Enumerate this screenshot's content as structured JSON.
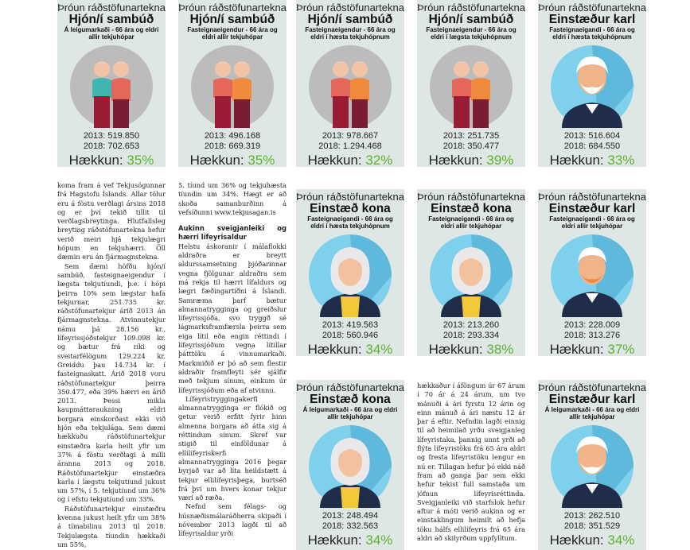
{
  "cards": [
    {
      "header": "Þróun ráðstöfunartekna",
      "title": "Hjón/í sambúð",
      "subtitle": "Á leigumarkaði - 66 ára og eldri allir tekjuhópar",
      "year1": "2013: 519.850",
      "year2": "2018: 702.653",
      "increase_label": "Hækkun:",
      "increase_value": "35%"
    },
    {
      "header": "Þróun ráðstöfunartekna",
      "title": "Hjón/í sambúð",
      "subtitle": "Fasteignaeigendur - 66 ára og eldri allir tekjuhópar",
      "year1": "2013: 496.168",
      "year2": "2018: 669.319",
      "increase_label": "Hækkun:",
      "increase_value": "35%"
    },
    {
      "header": "Þróun ráðstöfunartekna",
      "title": "Hjón/í sambúð",
      "subtitle": "Fasteignaeigendur - 66 ára og eldri í hæsta tekjuhópnum",
      "year1": "2013: 978.667",
      "year2": "2018: 1.294.468",
      "increase_label": "Hækkun:",
      "increase_value": "32%"
    },
    {
      "header": "Þróun ráðstöfunartekna",
      "title": "Hjón/í sambúð",
      "subtitle": "Fasteignaeigendur - 66 ára og eldri í lægsta tekjuhópnum",
      "year1": "2013: 251.735",
      "year2": "2018: 350.477",
      "increase_label": "Hækkun:",
      "increase_value": "39%"
    },
    {
      "header": "Þróun ráðstöfunartekna",
      "title": "Einstæður karl",
      "subtitle": "Fasteignaeigandi - 66 ára og eldri í hæsta tekjuhópnum",
      "year1": "2013: 516.604",
      "year2": "2018: 684.550",
      "increase_label": "Hækkun:",
      "increase_value": "33%"
    },
    {
      "header": "Þróun ráðstöfunartekna",
      "title": "Einstæð kona",
      "subtitle": "Fasteignaeigandi - 66 ára og eldri í hæsta tekjuhópnum",
      "year1": "2013: 419.563",
      "year2": "2018: 560.946",
      "increase_label": "Hækkun:",
      "increase_value": "34%"
    },
    {
      "header": "Þróun ráðstöfunartekna",
      "title": "Einstæð kona",
      "subtitle": "Fasteignaeigandi - 66 ára og eldri allir tekjuhópar",
      "year1": "2013: 213.260",
      "year2": "2018: 293.334",
      "increase_label": "Hækkun:",
      "increase_value": "38%"
    },
    {
      "header": "Þróun ráðstöfunartekna",
      "title": "Einstæður karl",
      "subtitle": "Fasteignaeigandi - 66 ára og eldri allir tekjuhópar",
      "year1": "2013: 228.009",
      "year2": "2018: 313.276",
      "increase_label": "Hækkun:",
      "increase_value": "37%"
    },
    {
      "header": "Þróun ráðstöfunartekna",
      "title": "Einstæð kona",
      "subtitle": "Á leigumarkaði - 66 ára og eldri allir tekjuhópar",
      "year1": "2013: 248.494",
      "year2": "2018: 332.563",
      "increase_label": "Hækkun:",
      "increase_value": "34%"
    },
    {
      "header": "Þróun ráðstöfunartekna",
      "title": "Einstæður karl",
      "subtitle": "Á leigumarkaði - 66 ára og eldri allir tekjuhópar",
      "year1": "2013: 262.510",
      "year2": "2018: 351.529",
      "increase_label": "Hækkun:",
      "increase_value": "34%"
    }
  ],
  "text": {
    "col1": {
      "p1": "koma fram á vef Tekjusögunnar frá Hagstofu Íslands. Allar tölur eru á föstu verðlagi ársins 2018 og er því tekið tillit til verðlagsbreytinga. Hlutfallsleg breyting ráðstöfunartekna hefur verið meiri hjá tekjulægri hópum en tekjuhærri. Öll dæmin eru án fjármagnstekna.",
      "p2": "Sem dæmi höfðu hjón/í sambúð, fasteignaeigendur í lægsta tekjutíundi, þ.e. í hópi þeirra 10% sem lægstar hafa tekjurnar, 251.735 kr. ráðstöfunartekjur árið 2013 án fjármagnstekna. Atvinnutekjur námu þá 28.156 kr., lífeyrissjóðstekjur 109.098 kr. og bætur frá ríki og sveitarfélögum 129.224 kr. Greiddu þau 14.734 kr. í fasteignaskatt. Árið 2018 voru ráðstöfunartekjur þeirra 350.477, eða 39% hærri en árið 2013. Þessi mikla kaupmáttaraukning eldri borgara einskorðast ekki við hjón eða tekjulága. Sem dæmi hækkuðu ráðstöfunartekjur einstæðra karla heilt yfir um 37% á föstu verðlagi á milli áranna 2013 og 2018. Ráðstöfunartekjur einstæðra karla í lægstu tekjutíund jukust um 57%, í 5. tekjutíund um 36% og í efstu tekjutíund um 33%.",
      "p3": "Ráðstöfunartekjur einstæðra kvenna jukust heilt yfir um 38% á tímabilinu 2013 til 2018. Tekjulægsta tíundin hækkaði um 55%,"
    },
    "col2": {
      "p1": "5. tíund um 36% og tekjuhæsta tíundin um 34%. Hægt er að skoða samanburðinn á vefsíðunni www.tekjusagan.is",
      "heading": "Aukinn sveigjanleiki og hærri lífeyrisaldur",
      "p2": "Helstu áskoranir í málaflokki aldraðra er breytt aldurssamsetning þjóðarinnar vegna fjölgunar aldraðra sem má rekja til hærri lífaldurs og lægri fæðingartíðni á Íslandi. Samræma þarf bætur almannatrygginga og greiðslur lífeyrissjóða, svo tryggð sé lágmarksframfærsla þeirra sem eiga lítil eða engin réttindi í lífeyrissjóðum vegna lítillar þátttöku á vinnumarkaði. Markmiðið er þó að sem flestir aldraðir framfleyti sér sjálfir með tekjum sínum, einkum úr lífeyrissjóðum eða af atvinnu.",
      "p3": "Lífeyristryggingakerfi almannatrygginga er flókið og getur verið erfitt fyrir hinn almenna borgara að átta sig á réttindum sínum. Skref var stigið til einföldunar á ellilífeyriskerfi almannatrygginga 2016 þegar byrjað var að líta heildstætt á tekjur ellilífeyrisþega, burtséð frá því um hvers konar tekjur væri að ræða.",
      "p4": "Nefnd sem félags- og húsnæðismálaráðherra skipaði í nóvember 2013 lagði til að lífeyrisaldur yrði"
    },
    "col3": {
      "p1": "hækkaður í áföngum úr 67 árum í 70 ár á 24 árum, um tvo mánuði á ári fyrstu 12 árin og einn mánuð á ári næstu 12 ár þar á eftir. Nefndin lagði einnig til að heimilað yrðu sveigjanleg lífeyristaka, þannig unnt yrði að flýta lífeyristöku frá 65 ára aldri og fresta lífeyristöku lengur en nú er. Tillagan hefur þó ekki náð fram að ganga þar sem ekki hefur tekist full samstaða um jöfnun lífeyrisréttinda. Sveigjanleiki við starfslok hefur aftur á móti verið aukinn og er einstaklingum heimilt að hefja töku hálfs ellilífeyris frá 65 ára aldri að skilyrðum uppfylltum."
    }
  },
  "colors": {
    "card_bg": "#dfe7e4",
    "accent_green": "#5bb32e",
    "circle_grey": "#bcbcbc",
    "circle_blue": "#7fd0ec"
  }
}
